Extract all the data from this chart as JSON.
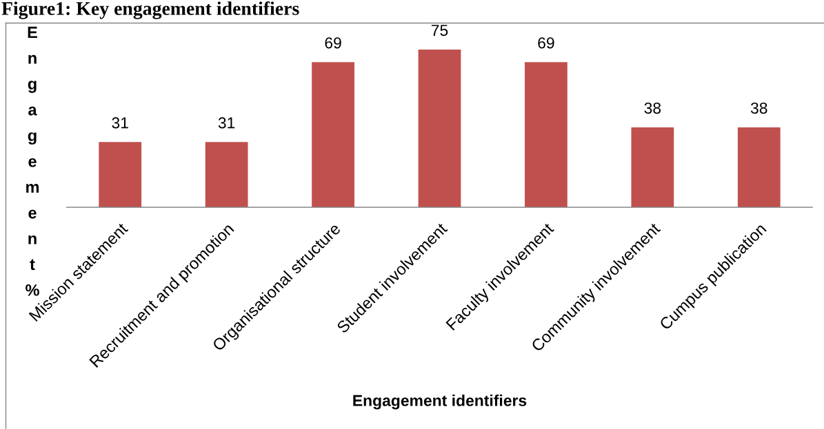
{
  "chart_data": {
    "type": "bar",
    "title": "Figure1: Key engagement identifiers",
    "xlabel": "Engagement identifiers",
    "ylabel": "Engagement %",
    "categories": [
      "Mission statement",
      "Recruitment and promotion",
      "Organisational structure",
      "Student involvement",
      "Faculty involvement",
      "Community involvement",
      "Cumpus publication"
    ],
    "values": [
      31,
      31,
      69,
      75,
      69,
      38,
      38
    ],
    "color": "#c0504d",
    "data_labels": true,
    "tick_labels": "x"
  }
}
